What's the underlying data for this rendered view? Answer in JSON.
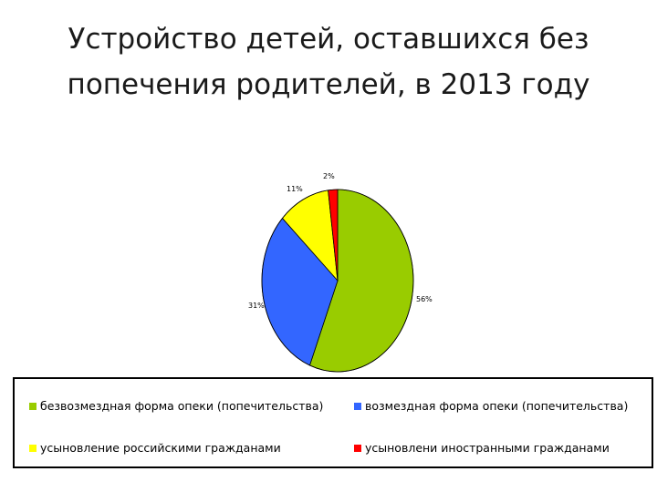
{
  "title_line1": "Устройство детей, оставшихся без",
  "title_line2": "попечения родителей, в 2013 году",
  "chart_data": {
    "type": "pie",
    "slices": [
      {
        "label": "безвозмездная форма опеки (попечительства)",
        "value": 56,
        "value_label": "56%",
        "color": "#99cc00"
      },
      {
        "label": "возмездная форма опеки (попечительства)",
        "value": 31,
        "value_label": "31%",
        "color": "#3366ff"
      },
      {
        "label": "усыновление российскими гражданами",
        "value": 11,
        "value_label": "11%",
        "color": "#ffff00"
      },
      {
        "label": "усыновлени иностранными гражданами",
        "value": 2,
        "value_label": "2%",
        "color": "#ff0000"
      }
    ],
    "legend_position": "bottom"
  }
}
